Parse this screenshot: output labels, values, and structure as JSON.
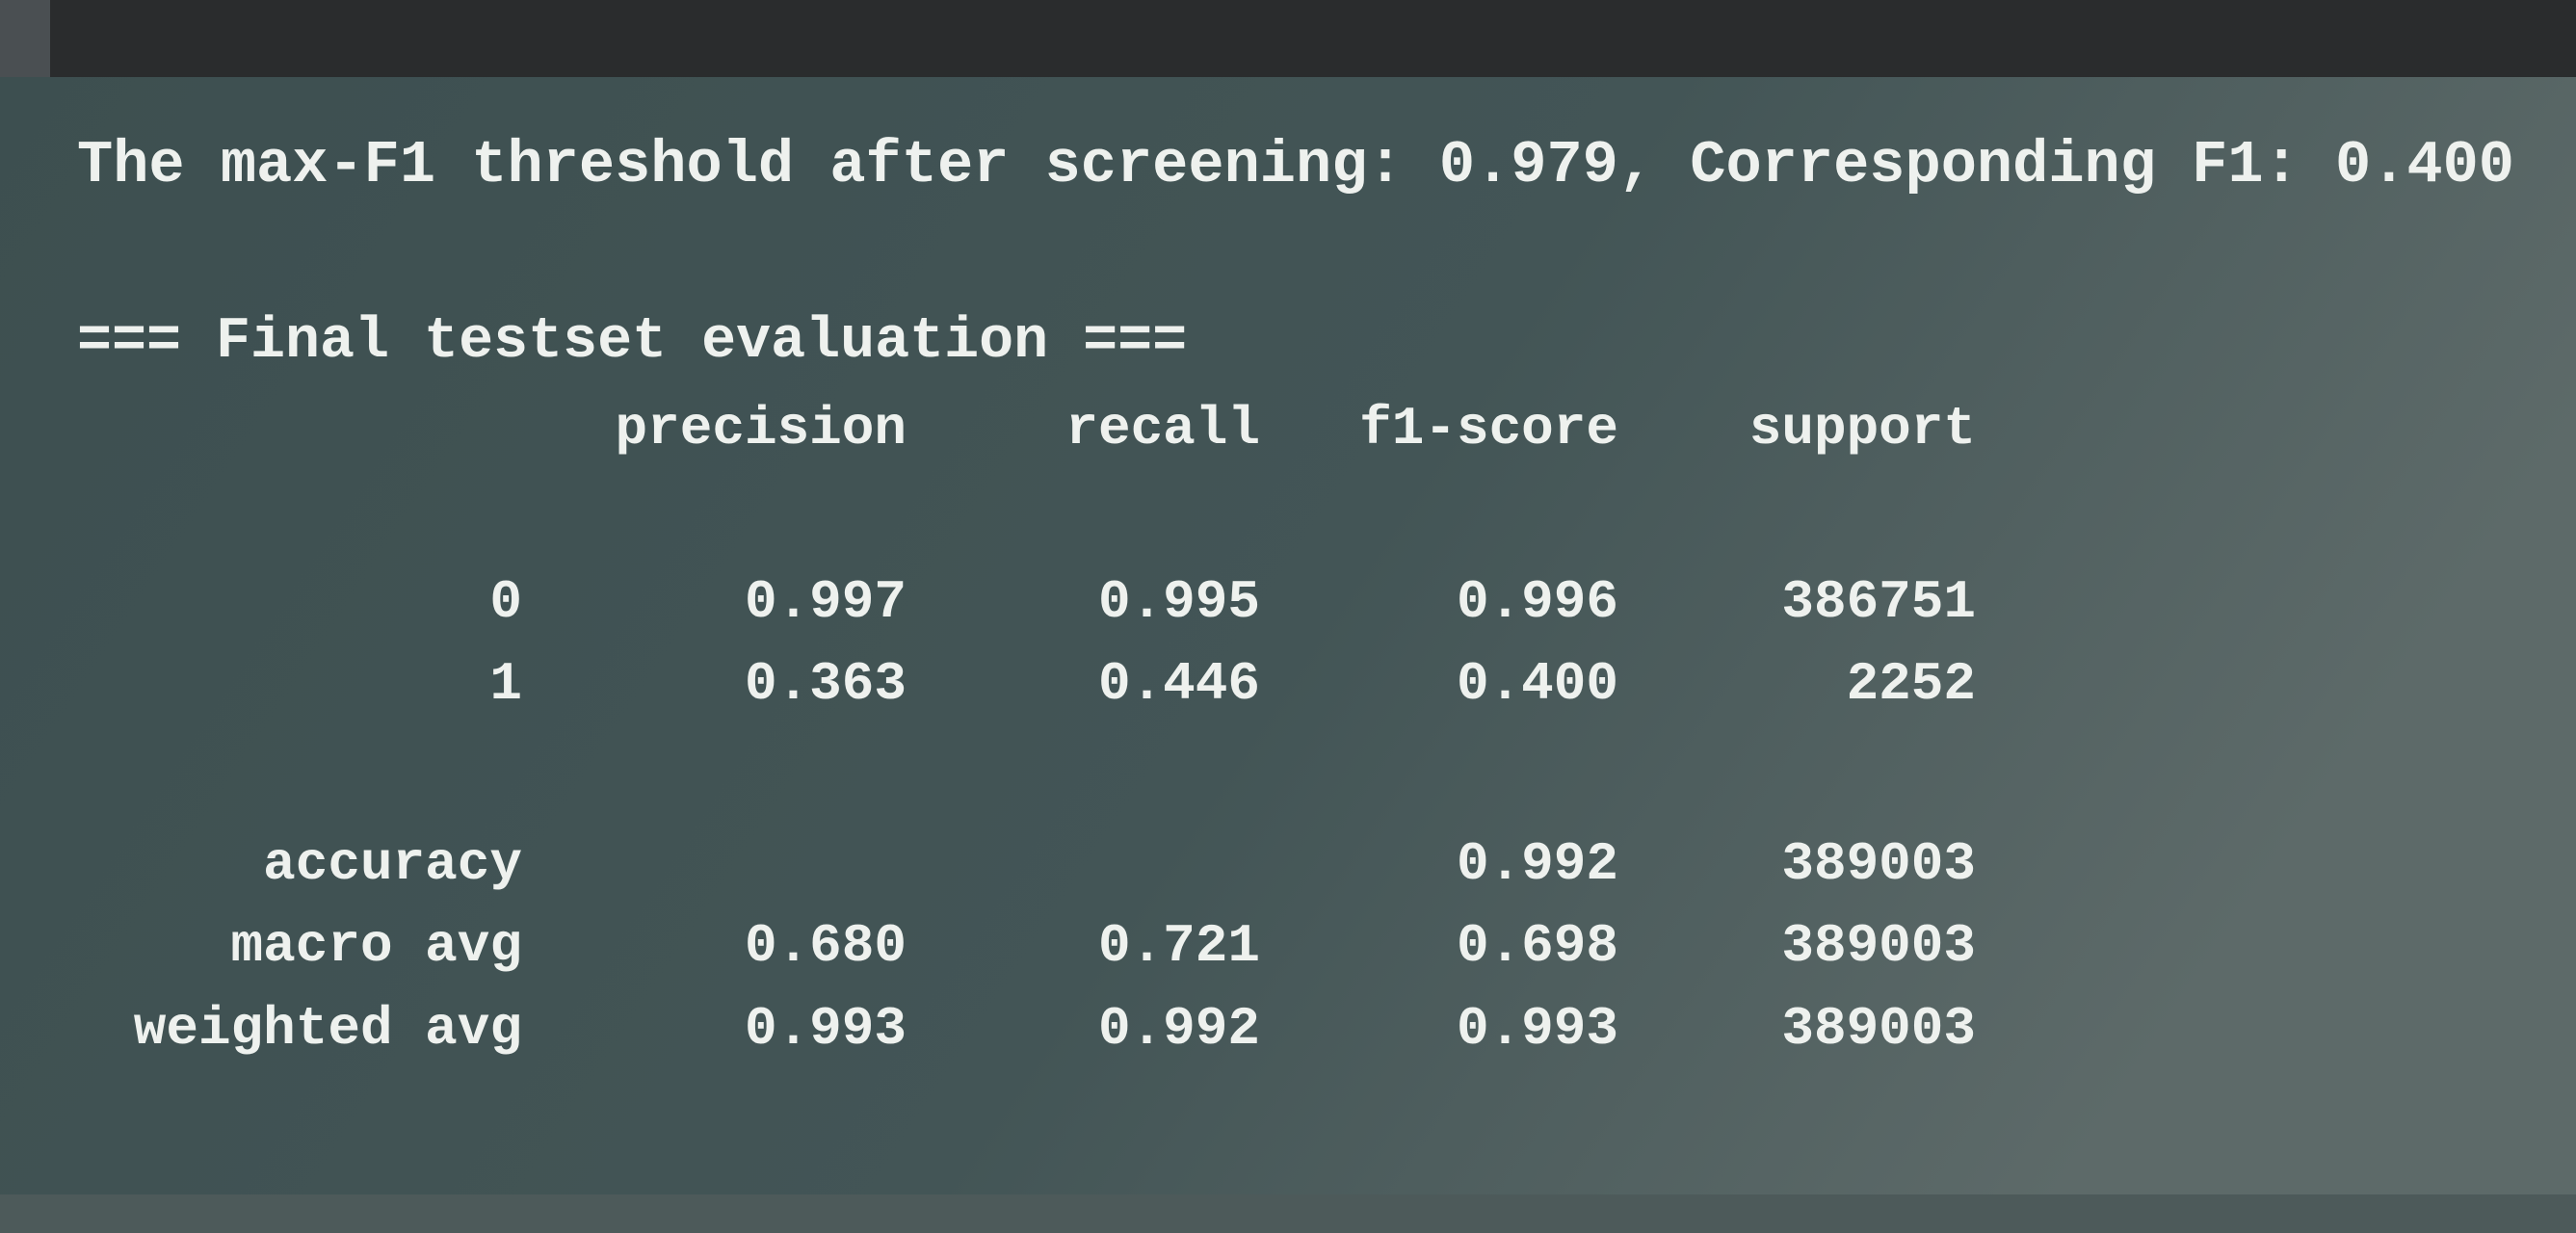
{
  "terminal": {
    "threshold_line": "The max-F1 threshold after screening: 0.979, Corresponding F1: 0.400",
    "section_title": "=== Final testset evaluation ===",
    "report": {
      "columns": [
        "precision",
        "recall",
        "f1-score",
        "support"
      ],
      "rows": [
        {
          "label": "0",
          "values": [
            "0.997",
            "0.995",
            "0.996",
            "386751"
          ]
        },
        {
          "label": "1",
          "values": [
            "0.363",
            "0.446",
            "0.400",
            "2252"
          ]
        },
        {
          "label": "accuracy",
          "values": [
            "0.992",
            "389003"
          ]
        },
        {
          "label": "macro avg",
          "values": [
            "0.680",
            "0.721",
            "0.698",
            "389003"
          ]
        },
        {
          "label": "weighted avg",
          "values": [
            "0.993",
            "0.992",
            "0.993",
            "389003"
          ]
        }
      ]
    }
  }
}
